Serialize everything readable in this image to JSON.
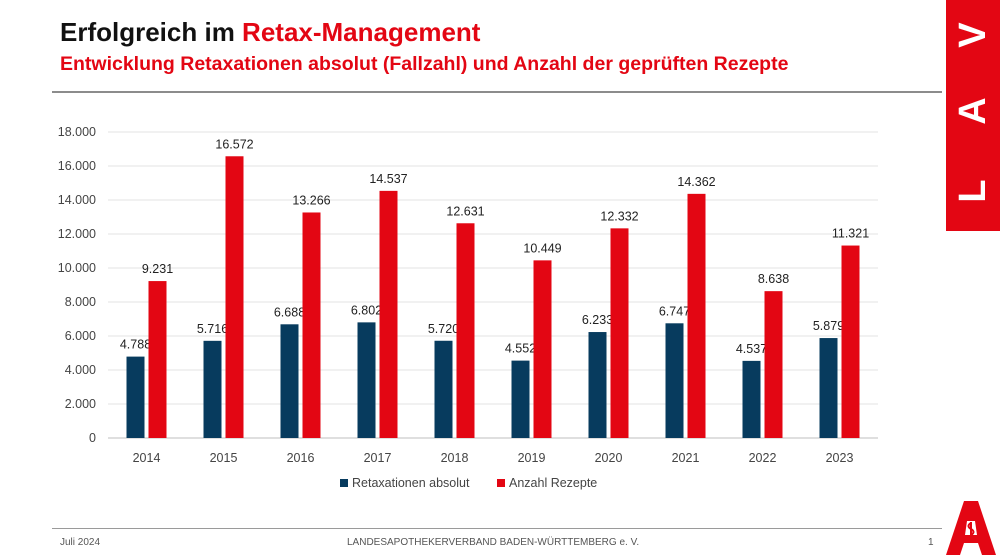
{
  "header": {
    "title_prefix": "Erfolgreich im ",
    "title_accent": "Retax-Management",
    "subtitle": "Entwicklung Retaxationen absolut (Fallzahl) und Anzahl der geprüften Rezepte"
  },
  "brand": {
    "letters": [
      "L",
      "A",
      "V"
    ],
    "logo": "apotheke-a-icon"
  },
  "footer": {
    "date": "Juli 2024",
    "org": "LANDESAPOTHEKERVERBAND BADEN-WÜRTTEMBERG e. V.",
    "page": "1"
  },
  "colors": {
    "accent": "#e30613",
    "navy": "#073b5e",
    "red": "#e30613"
  },
  "chart_data": {
    "type": "bar",
    "categories": [
      "2014",
      "2015",
      "2016",
      "2017",
      "2018",
      "2019",
      "2020",
      "2021",
      "2022",
      "2023"
    ],
    "series": [
      {
        "name": "Retaxationen absolut",
        "color": "#073b5e",
        "values": [
          4788,
          5716,
          6688,
          6802,
          5720,
          4552,
          6233,
          6747,
          4537,
          5879
        ],
        "labels": [
          "4.788",
          "5.716",
          "6.688",
          "6.802",
          "5.720",
          "4.552",
          "6.233",
          "6.747",
          "4.537",
          "5.879"
        ]
      },
      {
        "name": "Anzahl Rezepte",
        "color": "#e30613",
        "values": [
          9231,
          16572,
          13266,
          14537,
          12631,
          10449,
          12332,
          14362,
          8638,
          11321
        ],
        "labels": [
          "9.231",
          "16.572",
          "13.266",
          "14.537",
          "12.631",
          "10.449",
          "12.332",
          "14.362",
          "8.638",
          "11.321"
        ]
      }
    ],
    "ylim": [
      0,
      18000
    ],
    "yticks": [
      0,
      2000,
      4000,
      6000,
      8000,
      10000,
      12000,
      14000,
      16000,
      18000
    ],
    "ytick_labels": [
      "0",
      "2.000",
      "4.000",
      "6.000",
      "8.000",
      "10.000",
      "12.000",
      "14.000",
      "16.000",
      "18.000"
    ],
    "grid": true,
    "legend": "bottom"
  }
}
